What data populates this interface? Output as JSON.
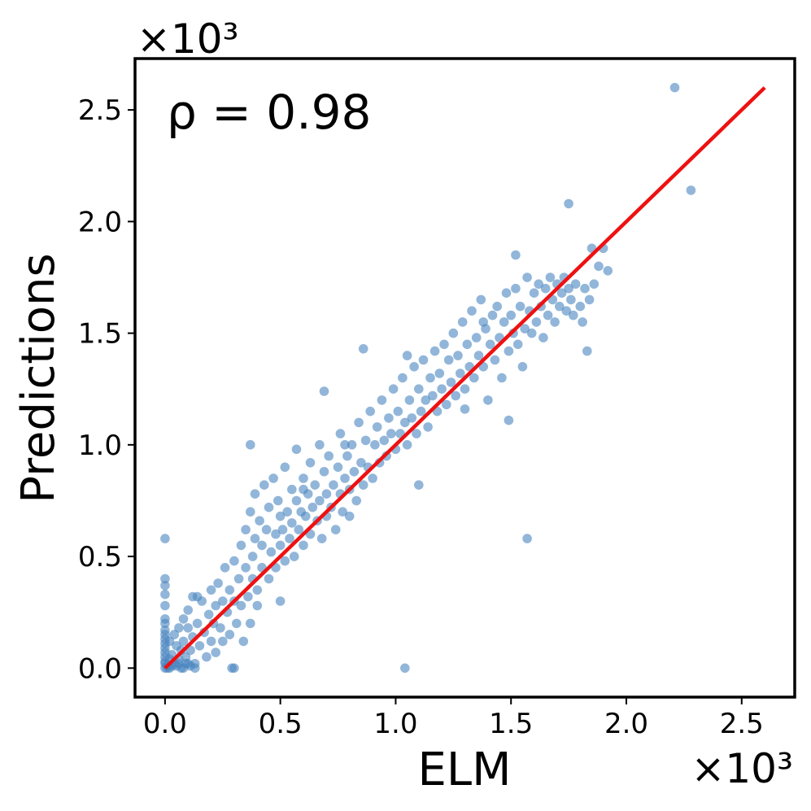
{
  "chart_data": {
    "type": "scatter",
    "xlabel": "ELM",
    "ylabel": "Predictions",
    "x_exponent_label": "×10³",
    "y_exponent_label": "×10³",
    "annotation": "ρ = 0.98",
    "xlim": [
      -0.13,
      2.73
    ],
    "ylim": [
      -0.13,
      2.73
    ],
    "x_ticks": [
      0.0,
      0.5,
      1.0,
      1.5,
      2.0,
      2.5
    ],
    "y_ticks": [
      0.0,
      0.5,
      1.0,
      1.5,
      2.0,
      2.5
    ],
    "x_tick_labels": [
      "0.0",
      "0.5",
      "1.0",
      "1.5",
      "2.0",
      "2.5"
    ],
    "y_tick_labels": [
      "0.0",
      "0.5",
      "1.0",
      "1.5",
      "2.0",
      "2.5"
    ],
    "grid": false,
    "legend": "none",
    "series": [
      {
        "kind": "scatter",
        "color": "#4a86bf",
        "points": [
          [
            0.0,
            0.58
          ],
          [
            0.0,
            0.4
          ],
          [
            0.0,
            0.37
          ],
          [
            0.0,
            0.33
          ],
          [
            0.0,
            0.28
          ],
          [
            0.0,
            0.22
          ],
          [
            0.0,
            0.2
          ],
          [
            0.0,
            0.17
          ],
          [
            0.0,
            0.15
          ],
          [
            0.0,
            0.13
          ],
          [
            0.0,
            0.11
          ],
          [
            0.0,
            0.09
          ],
          [
            0.0,
            0.07
          ],
          [
            0.0,
            0.05
          ],
          [
            0.0,
            0.03
          ],
          [
            0.0,
            0.02
          ],
          [
            0.0,
            0.0
          ],
          [
            0.01,
            0.01
          ],
          [
            0.02,
            0.04
          ],
          [
            0.02,
            0.0
          ],
          [
            0.03,
            0.06
          ],
          [
            0.04,
            0.02
          ],
          [
            0.05,
            0.1
          ],
          [
            0.06,
            0.04
          ],
          [
            0.07,
            0.0
          ],
          [
            0.08,
            0.12
          ],
          [
            0.09,
            0.05
          ],
          [
            0.1,
            0.18
          ],
          [
            0.1,
            0.02
          ],
          [
            0.11,
            0.08
          ],
          [
            0.12,
            0.32
          ],
          [
            0.12,
            0.14
          ],
          [
            0.13,
            0.02
          ],
          [
            0.14,
            0.2
          ],
          [
            0.15,
            0.1
          ],
          [
            0.16,
            0.3
          ],
          [
            0.17,
            0.16
          ],
          [
            0.18,
            0.05
          ],
          [
            0.19,
            0.24
          ],
          [
            0.2,
            0.35
          ],
          [
            0.2,
            0.12
          ],
          [
            0.21,
            0.2
          ],
          [
            0.22,
            0.07
          ],
          [
            0.22,
            0.28
          ],
          [
            0.23,
            0.38
          ],
          [
            0.24,
            0.18
          ],
          [
            0.25,
            0.3
          ],
          [
            0.25,
            0.12
          ],
          [
            0.26,
            0.45
          ],
          [
            0.27,
            0.25
          ],
          [
            0.28,
            0.35
          ],
          [
            0.28,
            0.15
          ],
          [
            0.29,
            0.0
          ],
          [
            0.3,
            0.48
          ],
          [
            0.3,
            0.3
          ],
          [
            0.31,
            0.2
          ],
          [
            0.32,
            0.4
          ],
          [
            0.33,
            0.55
          ],
          [
            0.33,
            0.28
          ],
          [
            0.34,
            0.12
          ],
          [
            0.35,
            0.62
          ],
          [
            0.35,
            0.45
          ],
          [
            0.36,
            0.32
          ],
          [
            0.37,
            0.7
          ],
          [
            0.37,
            0.2
          ],
          [
            0.38,
            0.5
          ],
          [
            0.38,
            0.4
          ],
          [
            0.39,
            0.78
          ],
          [
            0.39,
            0.58
          ],
          [
            0.4,
            0.28
          ],
          [
            0.4,
            0.35
          ],
          [
            0.41,
            0.66
          ],
          [
            0.42,
            0.45
          ],
          [
            0.42,
            0.55
          ],
          [
            0.43,
            0.82
          ],
          [
            0.44,
            0.62
          ],
          [
            0.45,
            0.4
          ],
          [
            0.45,
            0.72
          ],
          [
            0.46,
            0.52
          ],
          [
            0.47,
            0.85
          ],
          [
            0.48,
            0.6
          ],
          [
            0.48,
            0.45
          ],
          [
            0.49,
            0.75
          ],
          [
            0.5,
            0.55
          ],
          [
            0.5,
            0.68
          ],
          [
            0.51,
            0.62
          ],
          [
            0.52,
            0.9
          ],
          [
            0.52,
            0.48
          ],
          [
            0.53,
            0.7
          ],
          [
            0.54,
            0.58
          ],
          [
            0.55,
            0.8
          ],
          [
            0.55,
            0.65
          ],
          [
            0.56,
            0.5
          ],
          [
            0.57,
            0.75
          ],
          [
            0.57,
            0.98
          ],
          [
            0.58,
            0.62
          ],
          [
            0.59,
            0.7
          ],
          [
            0.6,
            0.55
          ],
          [
            0.6,
            0.85
          ],
          [
            0.61,
            0.68
          ],
          [
            0.62,
            0.78
          ],
          [
            0.63,
            0.92
          ],
          [
            0.63,
            0.6
          ],
          [
            0.64,
            0.72
          ],
          [
            0.65,
            0.82
          ],
          [
            0.66,
            0.66
          ],
          [
            0.67,
            1.0
          ],
          [
            0.67,
            0.75
          ],
          [
            0.68,
            0.58
          ],
          [
            0.69,
            0.88
          ],
          [
            0.7,
            0.78
          ],
          [
            0.7,
            0.68
          ],
          [
            0.71,
            0.95
          ],
          [
            0.72,
            0.72
          ],
          [
            0.73,
            0.82
          ],
          [
            0.74,
            0.62
          ],
          [
            0.75,
            0.9
          ],
          [
            0.76,
            1.05
          ],
          [
            0.76,
            0.78
          ],
          [
            0.77,
            0.7
          ],
          [
            0.78,
            0.85
          ],
          [
            0.79,
            0.95
          ],
          [
            0.8,
            0.8
          ],
          [
            0.8,
            0.68
          ],
          [
            0.81,
            1.0
          ],
          [
            0.82,
            0.88
          ],
          [
            0.83,
            0.75
          ],
          [
            0.84,
            1.1
          ],
          [
            0.85,
            0.92
          ],
          [
            0.86,
            0.82
          ],
          [
            0.87,
            1.02
          ],
          [
            0.88,
            0.9
          ],
          [
            0.89,
            1.15
          ],
          [
            0.9,
            0.85
          ],
          [
            0.91,
            1.0
          ],
          [
            0.92,
            1.08
          ],
          [
            0.93,
            0.92
          ],
          [
            0.94,
            1.2
          ],
          [
            0.95,
            1.02
          ],
          [
            0.96,
            0.95
          ],
          [
            0.97,
            1.12
          ],
          [
            0.98,
            1.05
          ],
          [
            0.99,
            1.25
          ],
          [
            1.0,
            0.98
          ],
          [
            1.01,
            1.15
          ],
          [
            1.02,
            1.05
          ],
          [
            1.03,
            1.3
          ],
          [
            1.04,
            1.1
          ],
          [
            1.05,
            1.0
          ],
          [
            1.06,
            1.2
          ],
          [
            1.07,
            1.12
          ],
          [
            1.08,
            1.35
          ],
          [
            1.09,
            1.05
          ],
          [
            1.1,
            1.25
          ],
          [
            1.11,
            1.15
          ],
          [
            1.12,
            1.38
          ],
          [
            1.13,
            1.2
          ],
          [
            1.14,
            1.08
          ],
          [
            1.15,
            1.3
          ],
          [
            1.16,
            1.22
          ],
          [
            1.17,
            1.42
          ],
          [
            1.18,
            1.15
          ],
          [
            1.19,
            1.32
          ],
          [
            1.2,
            1.25
          ],
          [
            1.21,
            1.45
          ],
          [
            1.22,
            1.18
          ],
          [
            1.23,
            1.38
          ],
          [
            1.24,
            1.28
          ],
          [
            1.25,
            1.5
          ],
          [
            1.26,
            1.22
          ],
          [
            1.27,
            1.4
          ],
          [
            1.28,
            1.32
          ],
          [
            1.29,
            1.55
          ],
          [
            1.3,
            1.25
          ],
          [
            1.31,
            1.45
          ],
          [
            1.32,
            1.35
          ],
          [
            1.33,
            1.6
          ],
          [
            1.34,
            1.3
          ],
          [
            1.35,
            1.48
          ],
          [
            1.36,
            1.4
          ],
          [
            1.37,
            1.65
          ],
          [
            1.38,
            1.35
          ],
          [
            1.39,
            1.52
          ],
          [
            1.4,
            1.2
          ],
          [
            1.41,
            1.45
          ],
          [
            1.42,
            1.58
          ],
          [
            1.43,
            1.38
          ],
          [
            1.44,
            1.62
          ],
          [
            1.45,
            1.48
          ],
          [
            1.46,
            1.3
          ],
          [
            1.47,
            1.55
          ],
          [
            1.48,
            1.68
          ],
          [
            1.49,
            1.42
          ],
          [
            1.5,
            1.58
          ],
          [
            1.51,
            1.5
          ],
          [
            1.52,
            1.7
          ],
          [
            1.53,
            1.45
          ],
          [
            1.54,
            1.62
          ],
          [
            1.55,
            1.35
          ],
          [
            1.56,
            1.52
          ],
          [
            1.57,
            1.75
          ],
          [
            1.58,
            1.6
          ],
          [
            1.59,
            1.5
          ],
          [
            1.6,
            1.68
          ],
          [
            1.61,
            1.55
          ],
          [
            1.62,
            1.72
          ],
          [
            1.63,
            1.62
          ],
          [
            1.64,
            1.48
          ],
          [
            1.65,
            1.7
          ],
          [
            1.66,
            1.58
          ],
          [
            1.67,
            1.75
          ],
          [
            1.68,
            1.65
          ],
          [
            1.69,
            1.55
          ],
          [
            1.7,
            1.72
          ],
          [
            1.71,
            1.62
          ],
          [
            1.72,
            1.68
          ],
          [
            1.73,
            1.75
          ],
          [
            1.74,
            1.6
          ],
          [
            1.75,
            1.7
          ],
          [
            1.76,
            1.65
          ],
          [
            1.77,
            1.58
          ],
          [
            1.78,
            1.72
          ],
          [
            1.8,
            1.62
          ],
          [
            1.81,
            1.55
          ],
          [
            1.82,
            1.7
          ],
          [
            1.84,
            1.65
          ],
          [
            1.86,
            1.72
          ],
          [
            1.88,
            1.8
          ],
          [
            1.9,
            1.88
          ],
          [
            0.01,
            0.0
          ],
          [
            0.03,
            0.01
          ],
          [
            0.05,
            0.01
          ],
          [
            0.06,
            0.02
          ],
          [
            0.08,
            0.0
          ],
          [
            0.09,
            0.02
          ],
          [
            0.11,
            0.01
          ],
          [
            0.13,
            0.0
          ],
          [
            0.02,
            0.12
          ],
          [
            0.04,
            0.15
          ],
          [
            0.06,
            0.18
          ],
          [
            0.07,
            0.08
          ],
          [
            0.08,
            0.22
          ],
          [
            0.1,
            0.26
          ],
          [
            0.14,
            0.32
          ],
          [
            0.3,
            0.0
          ],
          [
            0.37,
            1.0
          ],
          [
            0.5,
            0.3
          ],
          [
            0.69,
            1.24
          ],
          [
            0.6,
            0.8
          ],
          [
            0.78,
            1.0
          ],
          [
            0.86,
            1.43
          ],
          [
            1.04,
            0.0
          ],
          [
            1.05,
            1.4
          ],
          [
            1.1,
            0.82
          ],
          [
            1.3,
            1.16
          ],
          [
            1.38,
            1.55
          ],
          [
            1.49,
            1.11
          ],
          [
            1.52,
            1.85
          ],
          [
            1.57,
            0.58
          ],
          [
            1.75,
            2.08
          ],
          [
            1.83,
            1.42
          ],
          [
            1.85,
            1.88
          ],
          [
            1.92,
            1.78
          ],
          [
            2.21,
            2.6
          ],
          [
            2.28,
            2.14
          ]
        ]
      },
      {
        "kind": "line",
        "color": "#ee1111",
        "points": [
          [
            0.0,
            0.0
          ],
          [
            2.6,
            2.6
          ]
        ]
      }
    ]
  }
}
